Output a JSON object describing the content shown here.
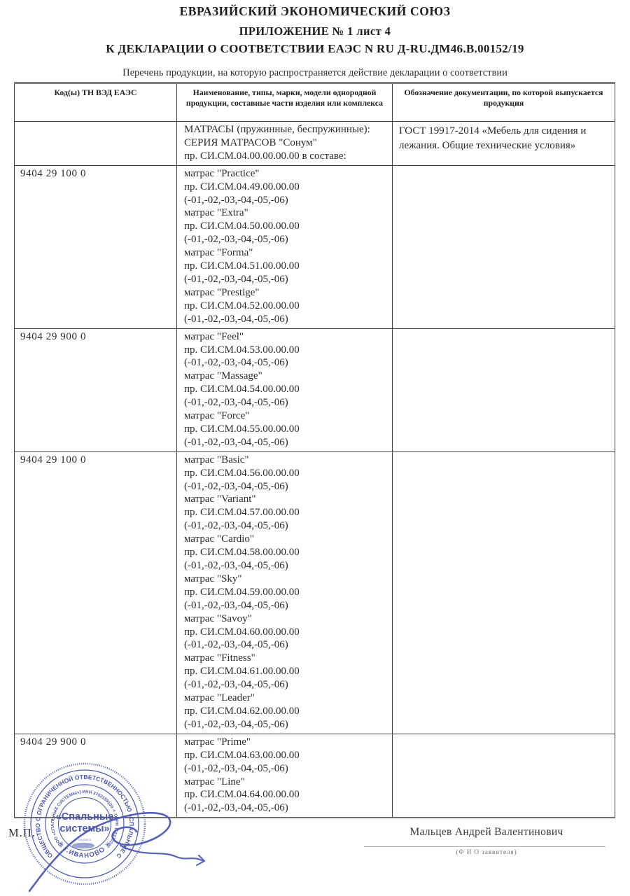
{
  "header": {
    "line1": "ЕВРАЗИЙСКИЙ ЭКОНОМИЧЕСКИЙ СОЮЗ",
    "line2": "ПРИЛОЖЕНИЕ № 1 лист 4",
    "line3": "К ДЕКЛАРАЦИИ О СООТВЕТСТВИИ ЕАЭС N RU Д-RU.ДМ46.В.00152/19",
    "caption": "Перечень продукции, на которую распространяется действие декларации о соответствии"
  },
  "table": {
    "headers": [
      "Код(ы) ТН ВЭД ЕАЭС",
      "Наименование, типы, марки, модели однородной продукции, составные части изделия или комплекса",
      "Обозначение документации, по которой выпускается продукция"
    ],
    "rows": [
      {
        "code": "",
        "product_lines": [
          "МАТРАСЫ (пружинные, беспружинные):",
          "СЕРИЯ МАТРАСОВ \"Сонум\"",
          "пр. СИ.СМ.04.00.00.00.00 в составе:"
        ],
        "documentation": "ГОСТ 19917-2014 «Мебель для сидения и лежания. Общие технические условия»"
      },
      {
        "code": "9404 29 100 0",
        "product_lines": [
          "матрас \"Practice\"",
          "пр. СИ.СМ.04.49.00.00.00",
          "(-01,-02,-03,-04,-05,-06)",
          "матрас \"Extra\"",
          "пр. СИ.СМ.04.50.00.00.00",
          "(-01,-02,-03,-04,-05,-06)",
          "матрас \"Forma\"",
          "пр. СИ.СМ.04.51.00.00.00",
          "(-01,-02,-03,-04,-05,-06)",
          "матрас \"Prestige\"",
          "пр. СИ.СМ.04.52.00.00.00",
          "(-01,-02,-03,-04,-05,-06)"
        ],
        "documentation": ""
      },
      {
        "code": "9404 29 900 0",
        "product_lines": [
          "матрас \"Feel\"",
          "пр. СИ.СМ.04.53.00.00.00",
          "(-01,-02,-03,-04,-05,-06)",
          "матрас \"Massage\"",
          "пр. СИ.СМ.04.54.00.00.00",
          "(-01,-02,-03,-04,-05,-06)",
          "матрас \"Force\"",
          "пр. СИ.СМ.04.55.00.00.00",
          "(-01,-02,-03,-04,-05,-06)"
        ],
        "documentation": ""
      },
      {
        "code": "9404 29 100 0",
        "product_lines": [
          "матрас \"Basic\"",
          "пр. СИ.СМ.04.56.00.00.00",
          "(-01,-02,-03,-04,-05,-06)",
          "матрас \"Variant\"",
          "пр. СИ.СМ.04.57.00.00.00",
          "(-01,-02,-03,-04,-05,-06)",
          "матрас \"Cardio\"",
          "пр. СИ.СМ.04.58.00.00.00",
          "(-01,-02,-03,-04,-05,-06)",
          "матрас \"Sky\"",
          "пр. СИ.СМ.04.59.00.00.00",
          "(-01,-02,-03,-04,-05,-06)",
          "матрас \"Savoy\"",
          "пр. СИ.СМ.04.60.00.00.00",
          "(-01,-02,-03,-04,-05,-06)",
          "матрас \"Fitness\"",
          "пр. СИ.СМ.04.61.00.00.00",
          "(-01,-02,-03,-04,-05,-06)",
          "матрас \"Leader\"",
          "пр. СИ.СМ.04.62.00.00.00",
          "(-01,-02,-03,-04,-05,-06)"
        ],
        "documentation": ""
      },
      {
        "code": "9404 29 900 0",
        "product_lines": [
          "матрас \"Prime\"",
          "пр. СИ.СМ.04.63.00.00.00",
          "(-01,-02,-03,-04,-05,-06)",
          "матрас \"Line\"",
          "пр. СИ.СМ.04.64.00.00.00",
          "(-01,-02,-03,-04,-05,-06)"
        ],
        "documentation": ""
      }
    ]
  },
  "footer": {
    "mp_label": "М.П.",
    "applicant_name": "Мальцев Андрей Валентинович",
    "applicant_caption": "(Ф И О  заявителя)",
    "stamp": {
      "color": "#3d4ea6",
      "signature_color": "#4c58b4",
      "ring_outer_text": "ОБЩЕСТВО С ОГРАНИЧЕННОЙ ОТВЕТСТВЕННОСТЬЮ «СПАЛЬНЫЕ СИСТЕМЫ»",
      "ring_inner_text": "(ООО «СПАЛЬНЫЕ СИСТЕМЫ») ИНН 3702159100 ✳ ОГРН 1163702071961",
      "bottom_text": "✳ г.ИВАНОВО ✳",
      "center_line1": "«Спальные",
      "center_line2": "системы»",
      "podpis_label": "подпись"
    }
  }
}
